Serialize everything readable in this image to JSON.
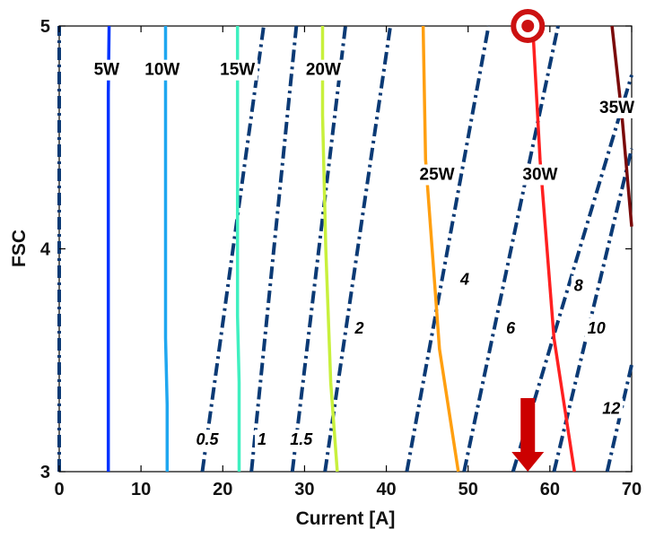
{
  "chart_data": {
    "type": "line",
    "xlabel": "Current [A]",
    "ylabel": "FSC",
    "xlim": [
      0,
      70
    ],
    "ylim": [
      3,
      5
    ],
    "xticks": [
      "0",
      "10",
      "20",
      "30",
      "40",
      "50",
      "60",
      "70"
    ],
    "yticks": [
      "3",
      "4",
      "5"
    ],
    "grid": false,
    "power_series": [
      {
        "label": "5W",
        "color": "#0033ff",
        "points": [
          [
            6,
            3
          ],
          [
            6,
            4.7
          ],
          [
            6.1,
            5
          ]
        ]
      },
      {
        "label": "10W",
        "color": "#1fa7f0",
        "points": [
          [
            13.2,
            3
          ],
          [
            13.2,
            3.3
          ],
          [
            13,
            3.6
          ],
          [
            13,
            5
          ]
        ]
      },
      {
        "label": "15W",
        "color": "#3ff0c0",
        "points": [
          [
            22,
            3
          ],
          [
            22,
            3.4
          ],
          [
            21.8,
            3.7
          ],
          [
            21.8,
            5
          ]
        ]
      },
      {
        "label": "20W",
        "color": "#c8f03c",
        "points": [
          [
            34,
            3
          ],
          [
            33.2,
            3.4
          ],
          [
            32.6,
            4
          ],
          [
            32.2,
            4.6
          ],
          [
            32.2,
            5
          ]
        ]
      },
      {
        "label": "25W",
        "color": "#ff9f10",
        "points": [
          [
            48.8,
            3
          ],
          [
            46.5,
            3.55
          ],
          [
            44.8,
            4.4
          ],
          [
            44.5,
            5
          ]
        ]
      },
      {
        "label": "30W",
        "color": "#ff2020",
        "points": [
          [
            63,
            3
          ],
          [
            60.5,
            3.6
          ],
          [
            58.8,
            4.4
          ],
          [
            57.9,
            5
          ]
        ]
      },
      {
        "label": "35W",
        "color": "#7a0a0a",
        "points": [
          [
            70,
            4.1
          ],
          [
            68.8,
            4.6
          ],
          [
            67.6,
            5
          ]
        ]
      }
    ],
    "contour_series": [
      {
        "label": "0.5",
        "color": "#0b3a75",
        "points": [
          [
            17.5,
            3
          ],
          [
            25,
            5
          ]
        ]
      },
      {
        "label": "1",
        "color": "#0b3a75",
        "points": [
          [
            23.5,
            3
          ],
          [
            29,
            5
          ]
        ]
      },
      {
        "label": "1.5",
        "color": "#0b3a75",
        "points": [
          [
            28.5,
            3
          ],
          [
            35,
            5
          ]
        ]
      },
      {
        "label": "2",
        "color": "#0b3a75",
        "points": [
          [
            32.5,
            3
          ],
          [
            40.5,
            5
          ]
        ]
      },
      {
        "label": "4",
        "color": "#0b3a75",
        "points": [
          [
            42.5,
            3
          ],
          [
            52.5,
            5
          ]
        ]
      },
      {
        "label": "6",
        "color": "#0b3a75",
        "points": [
          [
            49.5,
            3
          ],
          [
            61,
            5
          ]
        ]
      },
      {
        "label": "8",
        "color": "#0b3a75",
        "points": [
          [
            55.5,
            3
          ],
          [
            70,
            4.78
          ]
        ]
      },
      {
        "label": "10",
        "color": "#0b3a75",
        "points": [
          [
            60.5,
            3
          ],
          [
            70,
            4.45
          ]
        ]
      },
      {
        "label": "12",
        "color": "#0b3a75",
        "points": [
          [
            67,
            3
          ],
          [
            70,
            3.48
          ]
        ]
      }
    ],
    "boundary_series": [
      {
        "label": "",
        "color": "#0b3a75",
        "points": [
          [
            0,
            3
          ],
          [
            0,
            5
          ]
        ]
      }
    ],
    "marker": {
      "x": 57.3,
      "y": 5,
      "color": "#cc1111"
    },
    "arrow": {
      "x": 57.3,
      "y_top": 3.33,
      "y_bottom": 3,
      "color": "#cc0000"
    }
  }
}
